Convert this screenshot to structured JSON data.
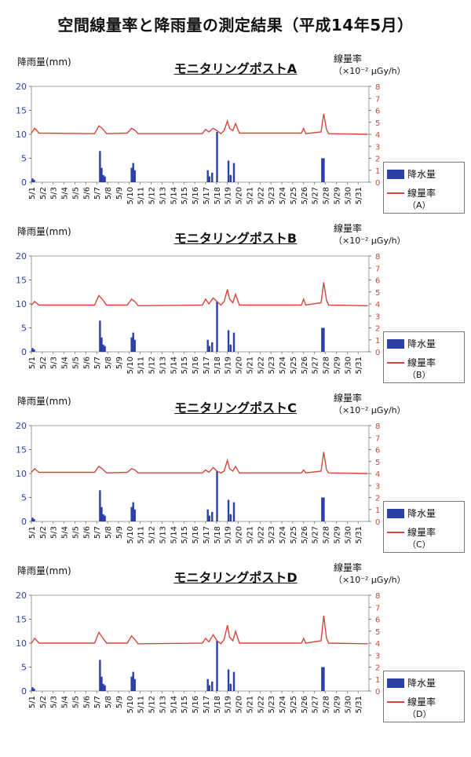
{
  "page": {
    "title": "空間線量率と降雨量の測定結果（平成14年5月）"
  },
  "common": {
    "left_axis_label": "降雨量(mm)",
    "right_axis_label": "線量率",
    "right_axis_unit": "（×10⁻² μGy/h）",
    "legend_rain": "降水量",
    "legend_dose": "線量率"
  },
  "colors": {
    "rain": "#2b3fa8",
    "dose": "#d9453b",
    "left_axis": "#2b3fa8",
    "right_axis": "#d9453b"
  },
  "chart_data": [
    {
      "type": "bar",
      "title": "モニタリングポストA",
      "legend_suffix": "（A）",
      "x": [
        "5/1",
        "5/2",
        "5/3",
        "5/4",
        "5/5",
        "5/6",
        "5/7",
        "5/8",
        "5/9",
        "5/10",
        "5/11",
        "5/12",
        "5/13",
        "5/14",
        "5/15",
        "5/16",
        "5/17",
        "5/18",
        "5/19",
        "5/20",
        "5/21",
        "5/22",
        "5/23",
        "5/24",
        "5/25",
        "5/26",
        "5/27",
        "5/28",
        "5/29",
        "5/30",
        "5/31"
      ],
      "y_left": {
        "label": "降雨量(mm)",
        "range": [
          0,
          20
        ],
        "ticks": [
          0,
          5,
          10,
          15,
          20
        ]
      },
      "y_right": {
        "label": "線量率",
        "unit": "（×10⁻² μGy/h）",
        "range": [
          0,
          8
        ],
        "ticks": [
          0,
          1,
          2,
          3,
          4,
          5,
          6,
          7,
          8
        ]
      },
      "series": [
        {
          "name": "降水量",
          "axis": "left",
          "points": [
            [
              1.1,
              0.8
            ],
            [
              1.25,
              0.5
            ],
            [
              7.3,
              6.5
            ],
            [
              7.45,
              3.0
            ],
            [
              7.6,
              1.5
            ],
            [
              7.75,
              1.2
            ],
            [
              10.2,
              3.0
            ],
            [
              10.35,
              4.0
            ],
            [
              10.5,
              2.5
            ],
            [
              17.2,
              2.5
            ],
            [
              17.35,
              1.2
            ],
            [
              17.6,
              2.0
            ],
            [
              18.05,
              10.5
            ],
            [
              19.1,
              4.5
            ],
            [
              19.3,
              1.5
            ],
            [
              19.6,
              4.0
            ],
            [
              27.7,
              5.0
            ],
            [
              27.85,
              5.0
            ]
          ]
        },
        {
          "name": "線量率",
          "axis": "right",
          "points": [
            [
              1,
              4.1
            ],
            [
              1.3,
              4.5
            ],
            [
              1.7,
              4.1
            ],
            [
              6.8,
              4.05
            ],
            [
              7.2,
              4.7
            ],
            [
              7.5,
              4.5
            ],
            [
              7.9,
              4.05
            ],
            [
              9.8,
              4.1
            ],
            [
              10.2,
              4.5
            ],
            [
              10.5,
              4.35
            ],
            [
              10.8,
              4.05
            ],
            [
              16.7,
              4.05
            ],
            [
              17.0,
              4.4
            ],
            [
              17.3,
              4.2
            ],
            [
              17.7,
              4.5
            ],
            [
              18.05,
              4.3
            ],
            [
              18.4,
              4.05
            ],
            [
              18.7,
              4.3
            ],
            [
              19.0,
              5.1
            ],
            [
              19.2,
              4.5
            ],
            [
              19.5,
              4.3
            ],
            [
              19.75,
              4.9
            ],
            [
              20.1,
              4.1
            ],
            [
              25.8,
              4.1
            ],
            [
              26.0,
              4.5
            ],
            [
              26.2,
              4.05
            ],
            [
              27.6,
              4.2
            ],
            [
              27.85,
              5.7
            ],
            [
              28.1,
              4.4
            ],
            [
              28.3,
              4.05
            ],
            [
              31.9,
              4.0
            ]
          ]
        }
      ]
    },
    {
      "type": "bar",
      "title": "モニタリングポストB",
      "legend_suffix": "（B）",
      "x": [
        "5/1",
        "5/2",
        "5/3",
        "5/4",
        "5/5",
        "5/6",
        "5/7",
        "5/8",
        "5/9",
        "5/10",
        "5/11",
        "5/12",
        "5/13",
        "5/14",
        "5/15",
        "5/16",
        "5/17",
        "5/18",
        "5/19",
        "5/20",
        "5/21",
        "5/22",
        "5/23",
        "5/24",
        "5/25",
        "5/26",
        "5/27",
        "5/28",
        "5/29",
        "5/30",
        "5/31"
      ],
      "y_left": {
        "label": "降雨量(mm)",
        "range": [
          0,
          20
        ],
        "ticks": [
          0,
          5,
          10,
          15,
          20
        ]
      },
      "y_right": {
        "label": "線量率",
        "unit": "（×10⁻² μGy/h）",
        "range": [
          0,
          8
        ],
        "ticks": [
          0,
          1,
          2,
          3,
          4,
          5,
          6,
          7,
          8
        ]
      },
      "series": [
        {
          "name": "降水量",
          "axis": "left",
          "points": [
            [
              1.1,
              0.8
            ],
            [
              1.25,
              0.5
            ],
            [
              7.3,
              6.5
            ],
            [
              7.45,
              3.0
            ],
            [
              7.6,
              1.5
            ],
            [
              7.75,
              1.2
            ],
            [
              10.2,
              3.0
            ],
            [
              10.35,
              4.0
            ],
            [
              10.5,
              2.5
            ],
            [
              17.2,
              2.5
            ],
            [
              17.35,
              1.2
            ],
            [
              17.6,
              2.0
            ],
            [
              18.05,
              10.5
            ],
            [
              19.1,
              4.5
            ],
            [
              19.3,
              1.5
            ],
            [
              19.6,
              4.0
            ],
            [
              27.7,
              5.0
            ],
            [
              27.85,
              5.0
            ]
          ]
        },
        {
          "name": "線量率",
          "axis": "right",
          "points": [
            [
              1,
              3.9
            ],
            [
              1.3,
              4.2
            ],
            [
              1.7,
              3.9
            ],
            [
              6.8,
              3.9
            ],
            [
              7.2,
              4.7
            ],
            [
              7.5,
              4.4
            ],
            [
              7.9,
              3.9
            ],
            [
              9.8,
              3.9
            ],
            [
              10.2,
              4.4
            ],
            [
              10.5,
              4.2
            ],
            [
              10.8,
              3.85
            ],
            [
              16.7,
              3.9
            ],
            [
              17.0,
              4.4
            ],
            [
              17.3,
              4.0
            ],
            [
              17.7,
              4.5
            ],
            [
              18.05,
              4.2
            ],
            [
              18.4,
              3.9
            ],
            [
              18.7,
              4.2
            ],
            [
              19.0,
              5.2
            ],
            [
              19.2,
              4.4
            ],
            [
              19.5,
              4.1
            ],
            [
              19.75,
              4.8
            ],
            [
              20.1,
              3.9
            ],
            [
              25.8,
              3.9
            ],
            [
              26.0,
              4.4
            ],
            [
              26.2,
              3.9
            ],
            [
              27.6,
              4.1
            ],
            [
              27.85,
              5.8
            ],
            [
              28.1,
              4.3
            ],
            [
              28.3,
              3.9
            ],
            [
              31.9,
              3.85
            ]
          ]
        }
      ]
    },
    {
      "type": "bar",
      "title": "モニタリングポストC",
      "legend_suffix": "（C）",
      "x": [
        "5/1",
        "5/2",
        "5/3",
        "5/4",
        "5/5",
        "5/6",
        "5/7",
        "5/8",
        "5/9",
        "5/10",
        "5/11",
        "5/12",
        "5/13",
        "5/14",
        "5/15",
        "5/16",
        "5/17",
        "5/18",
        "5/19",
        "5/20",
        "5/21",
        "5/22",
        "5/23",
        "5/24",
        "5/25",
        "5/26",
        "5/27",
        "5/28",
        "5/29",
        "5/30",
        "5/31"
      ],
      "y_left": {
        "label": "降雨量(mm)",
        "range": [
          0,
          20
        ],
        "ticks": [
          0,
          5,
          10,
          15,
          20
        ]
      },
      "y_right": {
        "label": "線量率",
        "unit": "（×10⁻² μGy/h）",
        "range": [
          0,
          8
        ],
        "ticks": [
          0,
          1,
          2,
          3,
          4,
          5,
          6,
          7,
          8
        ]
      },
      "series": [
        {
          "name": "降水量",
          "axis": "left",
          "points": [
            [
              1.1,
              0.8
            ],
            [
              1.25,
              0.5
            ],
            [
              7.3,
              6.5
            ],
            [
              7.45,
              3.0
            ],
            [
              7.6,
              1.5
            ],
            [
              7.75,
              1.2
            ],
            [
              10.2,
              3.0
            ],
            [
              10.35,
              4.0
            ],
            [
              10.5,
              2.5
            ],
            [
              17.2,
              2.5
            ],
            [
              17.35,
              1.2
            ],
            [
              17.6,
              2.0
            ],
            [
              18.05,
              10.5
            ],
            [
              19.1,
              4.5
            ],
            [
              19.3,
              1.5
            ],
            [
              19.6,
              4.0
            ],
            [
              27.7,
              5.0
            ],
            [
              27.85,
              5.0
            ]
          ]
        },
        {
          "name": "線量率",
          "axis": "right",
          "points": [
            [
              1,
              4.1
            ],
            [
              1.3,
              4.4
            ],
            [
              1.7,
              4.1
            ],
            [
              6.8,
              4.1
            ],
            [
              7.2,
              4.6
            ],
            [
              7.5,
              4.4
            ],
            [
              7.9,
              4.05
            ],
            [
              9.8,
              4.1
            ],
            [
              10.2,
              4.4
            ],
            [
              10.5,
              4.3
            ],
            [
              10.8,
              4.05
            ],
            [
              16.7,
              4.05
            ],
            [
              17.0,
              4.3
            ],
            [
              17.3,
              4.1
            ],
            [
              17.7,
              4.5
            ],
            [
              18.05,
              4.2
            ],
            [
              18.4,
              4.05
            ],
            [
              18.7,
              4.2
            ],
            [
              19.0,
              5.1
            ],
            [
              19.2,
              4.4
            ],
            [
              19.5,
              4.2
            ],
            [
              19.75,
              4.6
            ],
            [
              20.1,
              4.05
            ],
            [
              25.8,
              4.05
            ],
            [
              26.0,
              4.3
            ],
            [
              26.2,
              4.05
            ],
            [
              27.6,
              4.2
            ],
            [
              27.85,
              5.8
            ],
            [
              28.1,
              4.3
            ],
            [
              28.3,
              4.05
            ],
            [
              31.9,
              4.0
            ]
          ]
        }
      ]
    },
    {
      "type": "bar",
      "title": "モニタリングポストD",
      "legend_suffix": "（D）",
      "x": [
        "5/1",
        "5/2",
        "5/3",
        "5/4",
        "5/5",
        "5/6",
        "5/7",
        "5/8",
        "5/9",
        "5/10",
        "5/11",
        "5/12",
        "5/13",
        "5/14",
        "5/15",
        "5/16",
        "5/17",
        "5/18",
        "5/19",
        "5/20",
        "5/21",
        "5/22",
        "5/23",
        "5/24",
        "5/25",
        "5/26",
        "5/27",
        "5/28",
        "5/29",
        "5/30",
        "5/31"
      ],
      "y_left": {
        "label": "降雨量(mm)",
        "range": [
          0,
          20
        ],
        "ticks": [
          0,
          5,
          10,
          15,
          20
        ]
      },
      "y_right": {
        "label": "線量率",
        "unit": "（×10⁻² μGy/h）",
        "range": [
          0,
          8
        ],
        "ticks": [
          0,
          1,
          2,
          3,
          4,
          5,
          6,
          7,
          8
        ]
      },
      "series": [
        {
          "name": "降水量",
          "axis": "left",
          "points": [
            [
              1.1,
              0.8
            ],
            [
              1.25,
              0.5
            ],
            [
              7.3,
              6.5
            ],
            [
              7.45,
              3.0
            ],
            [
              7.6,
              1.5
            ],
            [
              7.75,
              1.2
            ],
            [
              10.2,
              3.0
            ],
            [
              10.35,
              4.0
            ],
            [
              10.5,
              2.5
            ],
            [
              17.2,
              2.5
            ],
            [
              17.35,
              1.2
            ],
            [
              17.6,
              2.0
            ],
            [
              18.05,
              10.5
            ],
            [
              19.1,
              4.5
            ],
            [
              19.3,
              1.5
            ],
            [
              19.6,
              4.0
            ],
            [
              27.7,
              5.0
            ],
            [
              27.85,
              5.0
            ]
          ]
        },
        {
          "name": "線量率",
          "axis": "right",
          "points": [
            [
              1,
              4.0
            ],
            [
              1.3,
              4.4
            ],
            [
              1.7,
              4.0
            ],
            [
              6.8,
              4.0
            ],
            [
              7.2,
              4.9
            ],
            [
              7.5,
              4.5
            ],
            [
              7.9,
              4.0
            ],
            [
              9.8,
              4.0
            ],
            [
              10.2,
              4.6
            ],
            [
              10.5,
              4.3
            ],
            [
              10.8,
              3.95
            ],
            [
              16.7,
              4.0
            ],
            [
              17.0,
              4.4
            ],
            [
              17.3,
              4.1
            ],
            [
              17.7,
              4.7
            ],
            [
              18.05,
              4.2
            ],
            [
              18.4,
              3.95
            ],
            [
              18.7,
              4.3
            ],
            [
              19.0,
              5.5
            ],
            [
              19.2,
              4.5
            ],
            [
              19.5,
              4.2
            ],
            [
              19.75,
              5.0
            ],
            [
              20.1,
              4.0
            ],
            [
              25.8,
              4.0
            ],
            [
              26.0,
              4.4
            ],
            [
              26.2,
              4.0
            ],
            [
              27.6,
              4.2
            ],
            [
              27.85,
              6.3
            ],
            [
              28.1,
              4.4
            ],
            [
              28.3,
              4.0
            ],
            [
              31.9,
              3.95
            ]
          ]
        }
      ]
    }
  ]
}
